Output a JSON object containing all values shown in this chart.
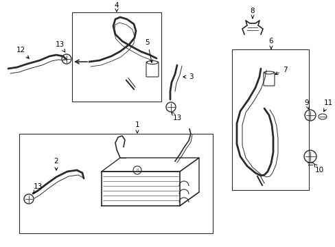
{
  "bg_color": "#ffffff",
  "line_color": "#2a2a2a",
  "figsize": [
    4.89,
    3.6
  ],
  "dpi": 100,
  "font_size": 7.5
}
